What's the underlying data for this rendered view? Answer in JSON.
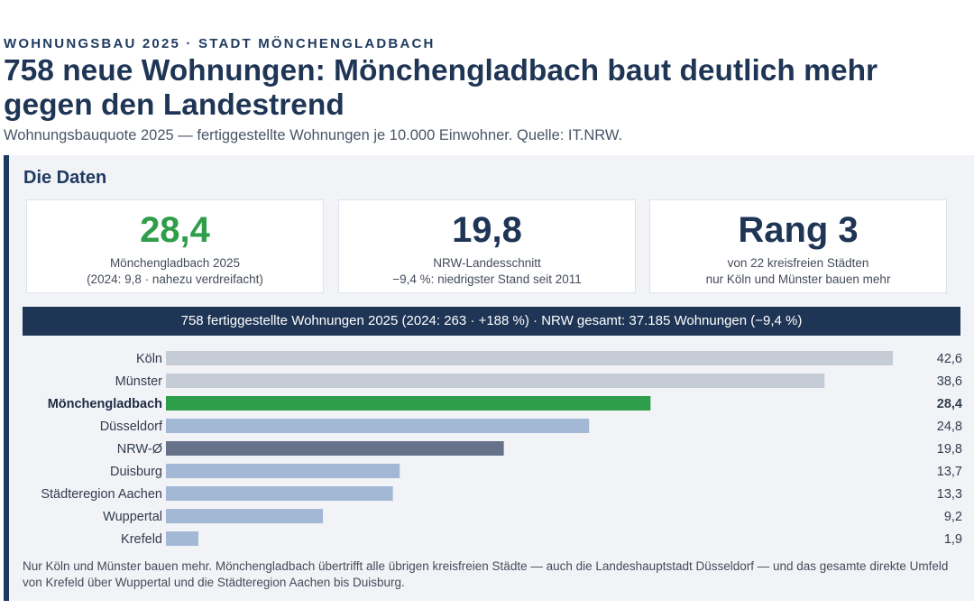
{
  "header": {
    "kicker": "WOHNUNGSBAU 2025 · STADT MÖNCHENGLADBACH",
    "headline": "758 neue Wohnungen: Mönchengladbach baut deutlich mehr gegen den Landestrend",
    "subtitle": "Wohnungsbauquote 2025 — fertiggestellte Wohnungen je 10.000 Einwohner. Quelle: IT.NRW."
  },
  "panel": {
    "title": "Die Daten",
    "cards": [
      {
        "value": "28,4",
        "line1": "Mönchengladbach 2025",
        "line2": "(2024: 9,8 · nahezu verdreifacht)",
        "color": "#2e9e4a"
      },
      {
        "value": "19,8",
        "line1": "NRW-Landesschnitt",
        "line2": "−9,4 %: niedrigster Stand seit 2011",
        "color": "#1f3556"
      },
      {
        "value": "Rang 3",
        "line1": "von 22 kreisfreien Städten",
        "line2": "nur Köln und Münster bauen mehr",
        "color": "#1f3556"
      }
    ],
    "banner": "758 fertiggestellte Wohnungen 2025 (2024: 263 · +188 %)  ·  NRW gesamt: 37.185 Wohnungen (−9,4 %)",
    "note": "Nur Köln und Münster bauen mehr. Mönchengladbach übertrifft alle übrigen kreisfreien Städte — auch die Landeshauptstadt Düsseldorf — und das gesamte direkte Umfeld von Krefeld über Wuppertal und die Städteregion Aachen bis Duisburg."
  },
  "chart_data": {
    "type": "bar",
    "orientation": "horizontal",
    "title": "",
    "xlabel": "",
    "ylabel": "",
    "xlim": [
      0,
      45
    ],
    "grid": false,
    "categories": [
      "Köln",
      "Münster",
      "Mönchengladbach",
      "Düsseldorf",
      "NRW-Ø",
      "Duisburg",
      "Städteregion Aachen",
      "Wuppertal",
      "Krefeld"
    ],
    "values": [
      42.6,
      38.6,
      28.4,
      24.8,
      19.8,
      13.7,
      13.3,
      9.2,
      1.9
    ],
    "value_labels": [
      "42,6",
      "38,6",
      "28,4",
      "24,8",
      "19,8",
      "13,7",
      "13,3",
      "9,2",
      "1,9"
    ],
    "highlight": [
      false,
      false,
      true,
      false,
      false,
      false,
      false,
      false,
      false
    ],
    "colors": [
      "#c5ccd6",
      "#c5ccd6",
      "#2e9e4a",
      "#a3b8d4",
      "#667289",
      "#a3b8d4",
      "#a3b8d4",
      "#a3b8d4",
      "#a3b8d4"
    ]
  }
}
